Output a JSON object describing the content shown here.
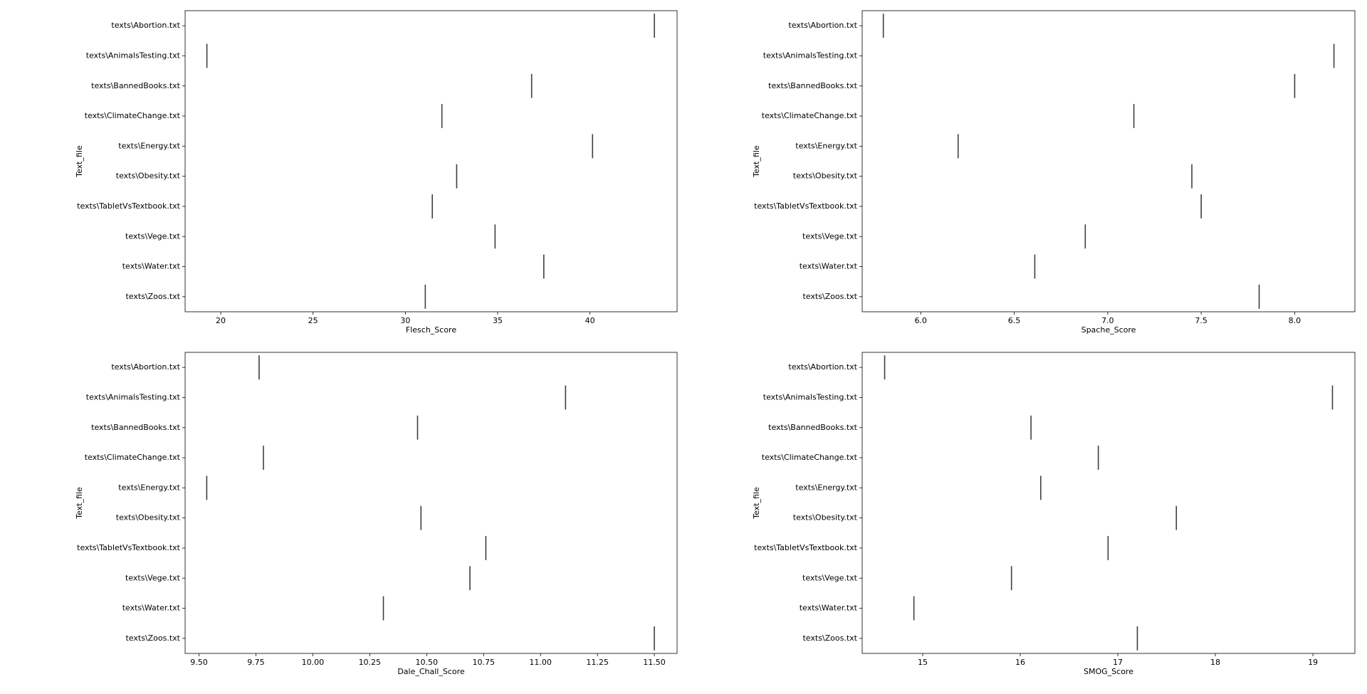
{
  "chart_data": [
    {
      "type": "box",
      "xlabel": "Flesch_Score",
      "ylabel": "Text_file",
      "categories": [
        "texts\\Abortion.txt",
        "texts\\AnimalsTesting.txt",
        "texts\\BannedBooks.txt",
        "texts\\ClimateChange.txt",
        "texts\\Energy.txt",
        "texts\\Obesity.txt",
        "texts\\TabletVsTextbook.txt",
        "texts\\Vege.txt",
        "texts\\Water.txt",
        "texts\\Zoos.txt"
      ],
      "values": [
        43.49,
        19.25,
        36.84,
        31.98,
        40.14,
        32.78,
        31.46,
        34.86,
        37.5,
        31.08
      ],
      "xlim": [
        18.07,
        44.72
      ],
      "xticks": [
        20,
        25,
        30,
        35,
        40
      ],
      "color": "#3f3f3f"
    },
    {
      "type": "box",
      "xlabel": "Spache_Score",
      "ylabel": "Text_file",
      "categories": [
        "texts\\Abortion.txt",
        "texts\\AnimalsTesting.txt",
        "texts\\BannedBooks.txt",
        "texts\\ClimateChange.txt",
        "texts\\Energy.txt",
        "texts\\Obesity.txt",
        "texts\\TabletVsTextbook.txt",
        "texts\\Vege.txt",
        "texts\\Water.txt",
        "texts\\Zoos.txt"
      ],
      "values": [
        5.8,
        8.21,
        8.0,
        7.14,
        6.2,
        7.45,
        7.5,
        6.88,
        6.61,
        7.81
      ],
      "xlim": [
        5.687,
        8.322
      ],
      "xticks": [
        {
          "value": 6,
          "label": "6.0"
        },
        6.5,
        {
          "value": 7,
          "label": "7.0"
        },
        7.5,
        {
          "value": 8,
          "label": "8.0"
        }
      ],
      "color": "#3f3f3f"
    },
    {
      "type": "box",
      "xlabel": "Dale_Chall_Score",
      "ylabel": "Text_file",
      "categories": [
        "texts\\Abortion.txt",
        "texts\\AnimalsTesting.txt",
        "texts\\BannedBooks.txt",
        "texts\\ClimateChange.txt",
        "texts\\Energy.txt",
        "texts\\Obesity.txt",
        "texts\\TabletVsTextbook.txt",
        "texts\\Vege.txt",
        "texts\\Water.txt",
        "texts\\Zoos.txt"
      ],
      "values": [
        9.764,
        11.11,
        10.46,
        9.783,
        9.534,
        10.475,
        10.76,
        10.69,
        10.31,
        11.5
      ],
      "xlim": [
        9.439,
        11.6
      ],
      "xticks": [
        {
          "value": 9.5,
          "label": "9.50"
        },
        9.75,
        {
          "value": 10,
          "label": "10.00"
        },
        10.25,
        {
          "value": 10.5,
          "label": "10.50"
        },
        10.75,
        {
          "value": 11,
          "label": "11.00"
        },
        11.25,
        {
          "value": 11.5,
          "label": "11.50"
        }
      ],
      "color": "#3f3f3f"
    },
    {
      "type": "box",
      "xlabel": "SMOG_Score",
      "ylabel": "Text_file",
      "categories": [
        "texts\\Abortion.txt",
        "texts\\AnimalsTesting.txt",
        "texts\\BannedBooks.txt",
        "texts\\ClimateChange.txt",
        "texts\\Energy.txt",
        "texts\\Obesity.txt",
        "texts\\TabletVsTextbook.txt",
        "texts\\Vege.txt",
        "texts\\Water.txt",
        "texts\\Zoos.txt"
      ],
      "values": [
        14.61,
        19.2,
        16.11,
        16.8,
        16.21,
        17.6,
        16.9,
        15.91,
        14.91,
        17.2
      ],
      "xlim": [
        14.38,
        19.43
      ],
      "xticks": [
        15,
        16,
        17,
        18,
        19
      ],
      "color": "#3f3f3f"
    }
  ]
}
